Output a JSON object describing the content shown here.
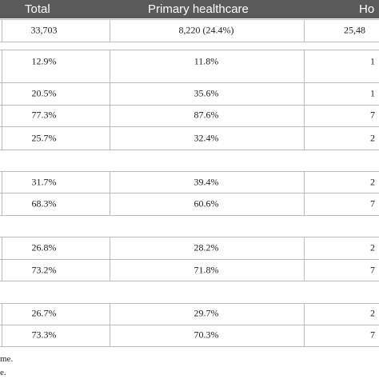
{
  "table": {
    "header": [
      "Total",
      "Primary healthcare",
      "Ho"
    ],
    "rows": [
      [
        "33,703",
        "8,220 (24.4%)",
        "25,48"
      ],
      [
        "12.9%",
        "11.8%",
        "1"
      ],
      [
        "20.5%",
        "35.6%",
        "1"
      ],
      [
        "77.3%",
        "87.6%",
        "7"
      ],
      [
        "25.7%",
        "32.4%",
        "2"
      ],
      [
        "31.7%",
        "39.4%",
        "2"
      ],
      [
        "68.3%",
        "60.6%",
        "7"
      ],
      [
        "26.8%",
        "28.2%",
        "2"
      ],
      [
        "73.2%",
        "71.8%",
        "7"
      ],
      [
        "26.7%",
        "29.7%",
        "2"
      ],
      [
        "73.3%",
        "70.3%",
        "7"
      ]
    ],
    "footnotes": [
      "me.",
      "e."
    ]
  }
}
